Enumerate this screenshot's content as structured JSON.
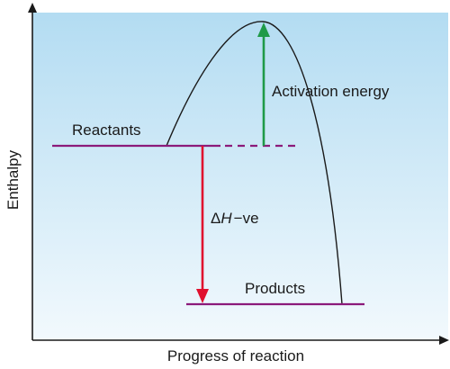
{
  "diagram": {
    "title": "",
    "y_axis_label": "Enthalpy",
    "x_axis_label": "Progress of reaction",
    "reactants_label": "Reactants",
    "products_label": "Products",
    "activation_energy_label": "Activation energy",
    "enthalpy_change_label": {
      "delta": "Δ",
      "symbol": "H",
      "sign": "−ve"
    },
    "colors": {
      "background_top": "#b3dcf2",
      "background_bottom": "#f2f9fd",
      "energy_levels": "#8b1a7a",
      "activation_arrow": "#1f9a48",
      "enthalpy_arrow": "#e0102e",
      "curve": "#1a1a1a",
      "axes": "#1a1a1a"
    }
  }
}
